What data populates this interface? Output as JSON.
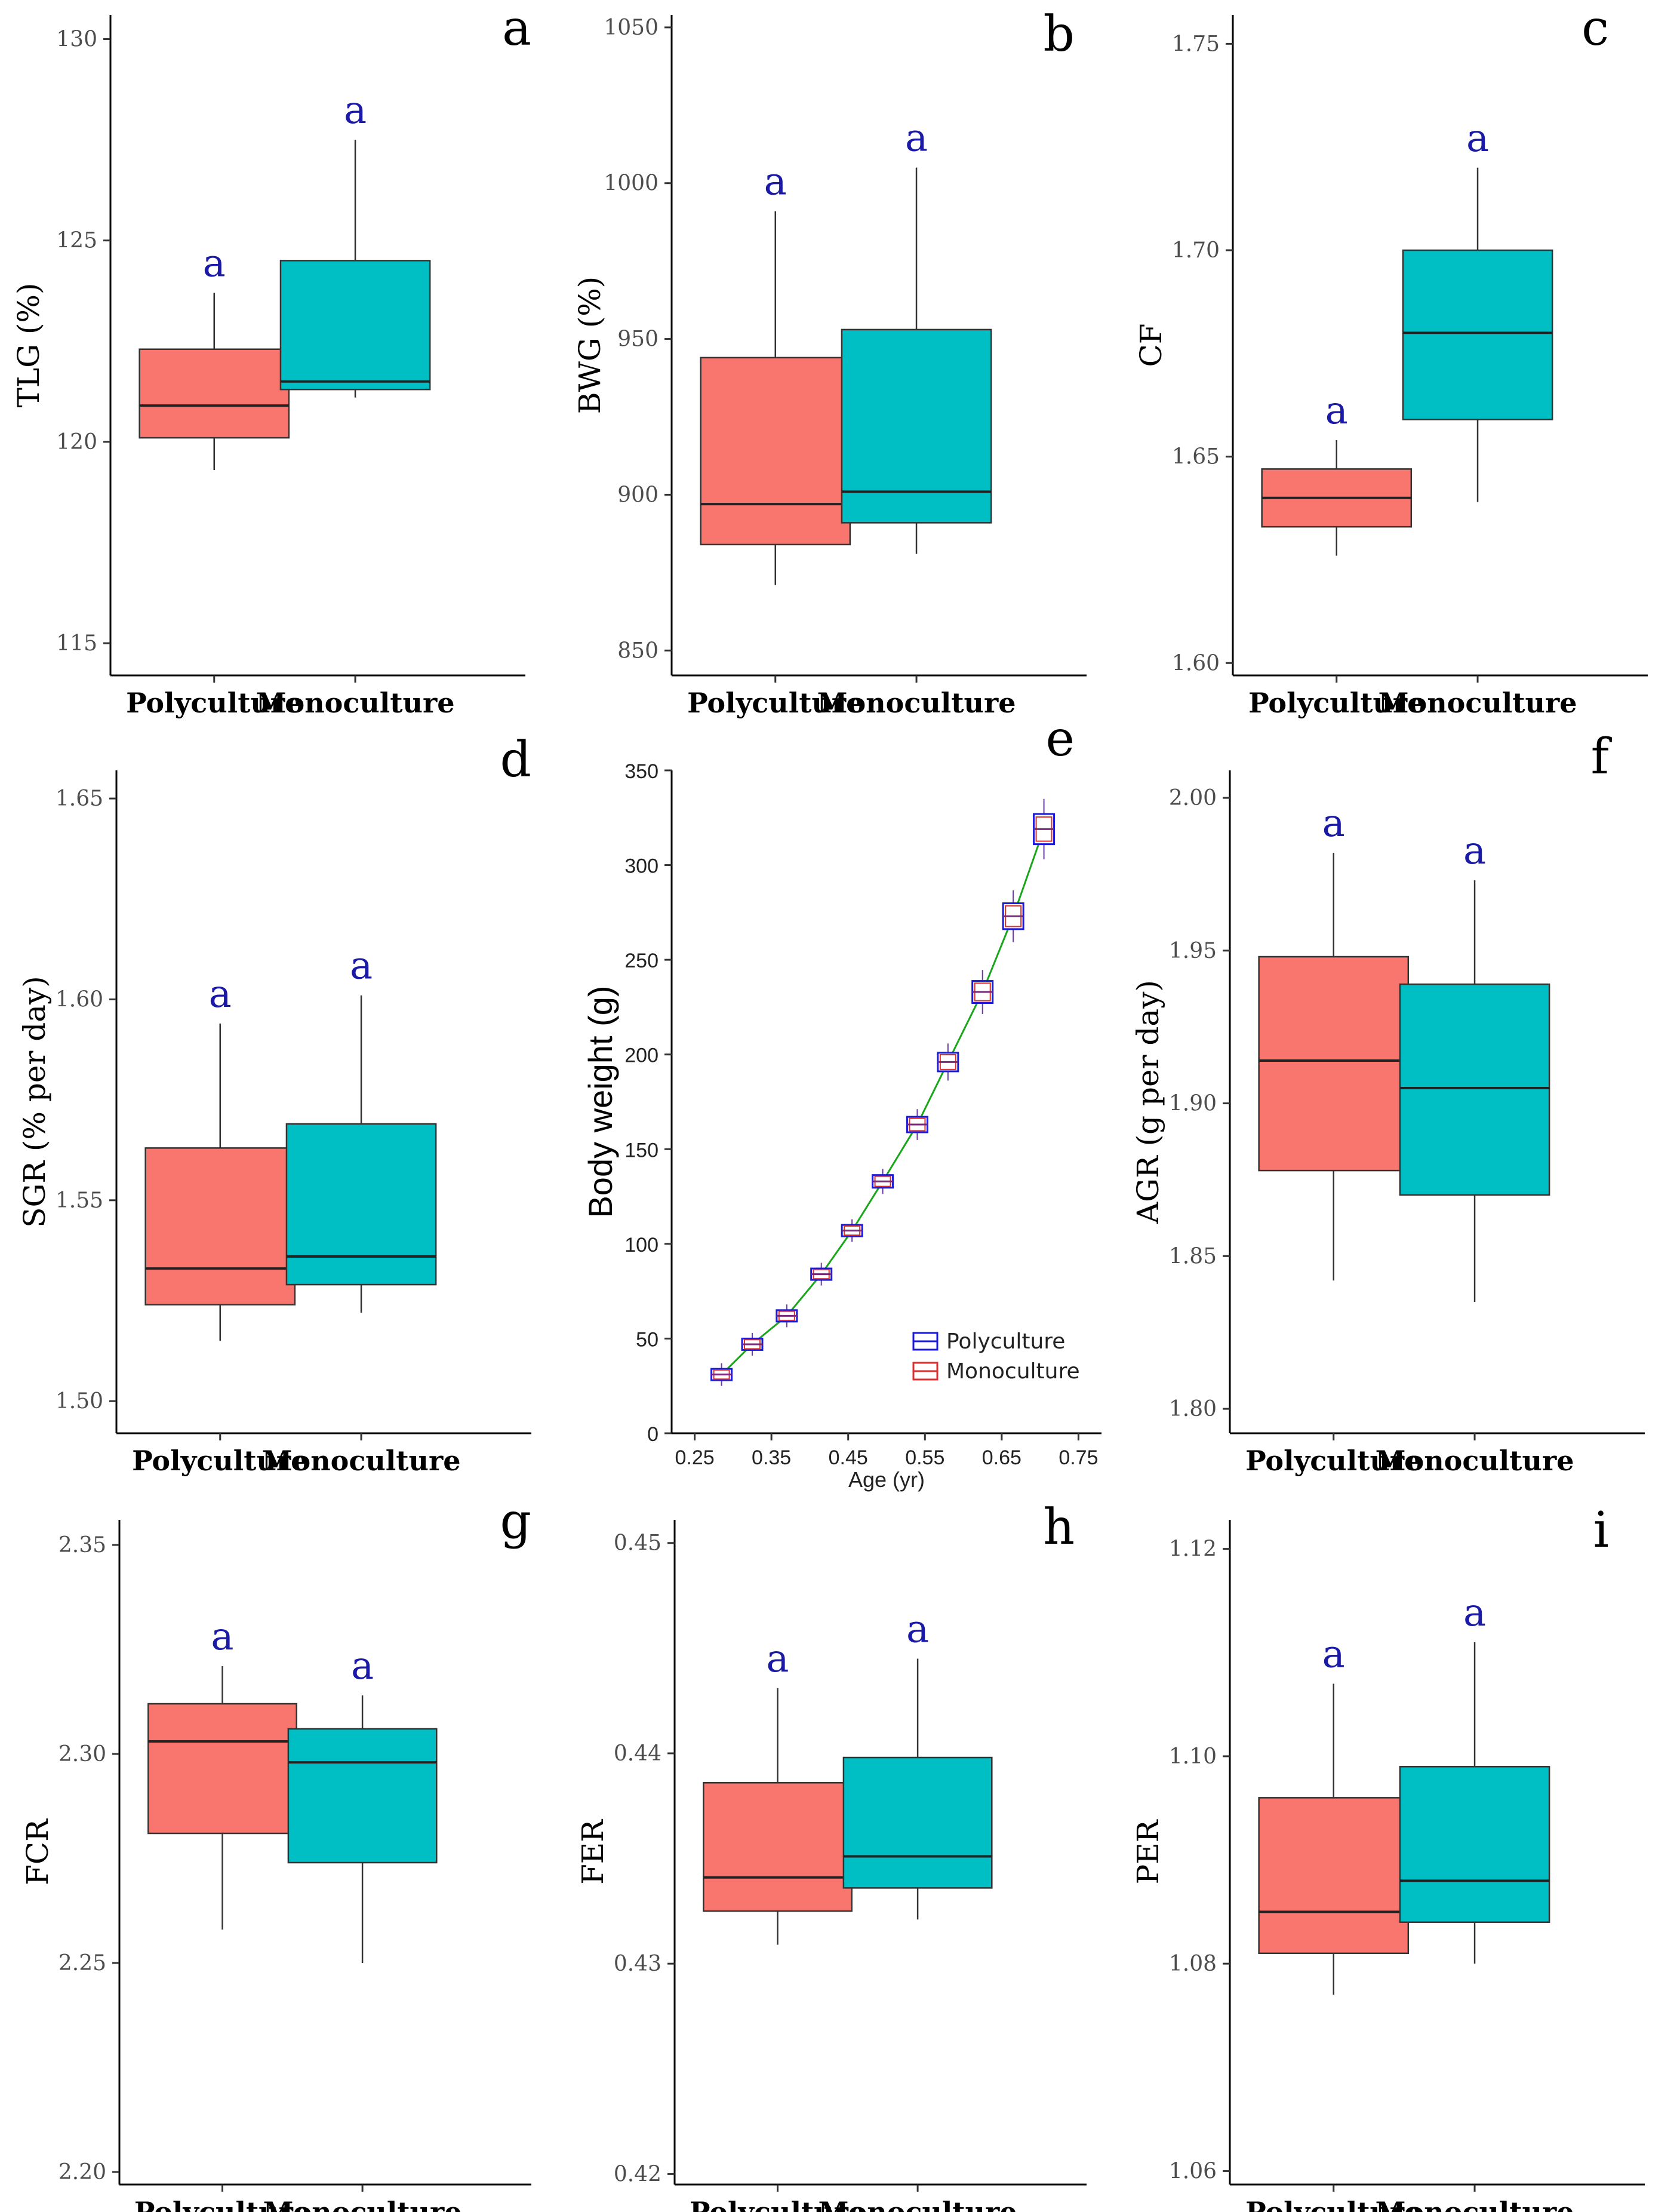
{
  "chart_data": [
    {
      "type": "box",
      "panel": "a",
      "ylabel": "TLG (%)",
      "ylim": [
        114.2,
        130.6
      ],
      "yticks": [
        115,
        120,
        125,
        130
      ],
      "decimals": 0,
      "categories": [
        "Polyculture",
        "Monoculture"
      ],
      "colors": [
        "#f8766d",
        "#00bfc4"
      ],
      "boxes": [
        {
          "min": 119.3,
          "q1": 120.1,
          "median": 120.9,
          "q3": 122.3,
          "max": 123.7,
          "label": "a"
        },
        {
          "min": 121.1,
          "q1": 121.3,
          "median": 121.5,
          "q3": 124.5,
          "max": 127.5,
          "label": "a"
        }
      ]
    },
    {
      "type": "box",
      "panel": "b",
      "ylabel": "BWG (%)",
      "ylim": [
        842,
        1054
      ],
      "yticks": [
        850,
        900,
        950,
        1000,
        1050
      ],
      "decimals": 0,
      "categories": [
        "Polyculture",
        "Monoculture"
      ],
      "colors": [
        "#f8766d",
        "#00bfc4"
      ],
      "boxes": [
        {
          "min": 871,
          "q1": 884,
          "median": 897,
          "q3": 944,
          "max": 991,
          "label": "a"
        },
        {
          "min": 881,
          "q1": 891,
          "median": 901,
          "q3": 953,
          "max": 1005,
          "label": "a"
        }
      ]
    },
    {
      "type": "box",
      "panel": "c",
      "ylabel": "CF",
      "ylim": [
        1.597,
        1.757
      ],
      "yticks": [
        1.6,
        1.65,
        1.7,
        1.75
      ],
      "decimals": 2,
      "categories": [
        "Polyculture",
        "Monoculture"
      ],
      "colors": [
        "#f8766d",
        "#00bfc4"
      ],
      "boxes": [
        {
          "min": 1.626,
          "q1": 1.633,
          "median": 1.64,
          "q3": 1.647,
          "max": 1.654,
          "label": "a"
        },
        {
          "min": 1.639,
          "q1": 1.659,
          "median": 1.68,
          "q3": 1.7,
          "max": 1.72,
          "label": "a"
        }
      ]
    },
    {
      "type": "box",
      "panel": "d",
      "ylabel": "SGR (% per day)",
      "ylim": [
        1.492,
        1.657
      ],
      "yticks": [
        1.5,
        1.55,
        1.6,
        1.65
      ],
      "decimals": 2,
      "categories": [
        "Polyculture",
        "Monoculture"
      ],
      "colors": [
        "#f8766d",
        "#00bfc4"
      ],
      "boxes": [
        {
          "min": 1.515,
          "q1": 1.524,
          "median": 1.533,
          "q3": 1.563,
          "max": 1.594,
          "label": "a"
        },
        {
          "min": 1.522,
          "q1": 1.529,
          "median": 1.536,
          "q3": 1.569,
          "max": 1.601,
          "label": "a"
        }
      ]
    },
    {
      "type": "box-line",
      "panel": "e",
      "ylabel": "Body weight (g)",
      "xlabel": "Age (yr)",
      "xlim": [
        0.22,
        0.78
      ],
      "ylim": [
        0,
        350
      ],
      "xticks": [
        0.25,
        0.35,
        0.45,
        0.55,
        0.65,
        0.75
      ],
      "yticks": [
        0,
        50,
        100,
        150,
        200,
        250,
        300,
        350
      ],
      "x": [
        0.285,
        0.325,
        0.37,
        0.415,
        0.455,
        0.495,
        0.54,
        0.58,
        0.625,
        0.665,
        0.705
      ],
      "y": [
        31,
        47,
        62,
        84,
        107,
        133,
        163,
        196,
        233,
        273,
        319
      ],
      "legend": [
        "Polyculture",
        "Monoculture"
      ],
      "legend_colors": [
        "#1a1ad9",
        "#d93030"
      ],
      "line_color": "#1aa61a"
    },
    {
      "type": "box",
      "panel": "f",
      "ylabel": "AGR (g per day)",
      "ylim": [
        1.792,
        2.009
      ],
      "yticks": [
        1.8,
        1.85,
        1.9,
        1.95,
        2.0
      ],
      "decimals": 2,
      "categories": [
        "Polyculture",
        "Monoculture"
      ],
      "colors": [
        "#f8766d",
        "#00bfc4"
      ],
      "boxes": [
        {
          "min": 1.842,
          "q1": 1.878,
          "median": 1.914,
          "q3": 1.948,
          "max": 1.982,
          "label": "a"
        },
        {
          "min": 1.835,
          "q1": 1.87,
          "median": 1.905,
          "q3": 1.939,
          "max": 1.973,
          "label": "a"
        }
      ]
    },
    {
      "type": "box",
      "panel": "g",
      "ylabel": "FCR",
      "ylim": [
        2.197,
        2.356
      ],
      "yticks": [
        2.2,
        2.25,
        2.3,
        2.35
      ],
      "decimals": 2,
      "categories": [
        "Polyculture",
        "Monoculture"
      ],
      "colors": [
        "#f8766d",
        "#00bfc4"
      ],
      "boxes": [
        {
          "min": 2.258,
          "q1": 2.281,
          "median": 2.303,
          "q3": 2.312,
          "max": 2.321,
          "label": "a"
        },
        {
          "min": 2.25,
          "q1": 2.274,
          "median": 2.298,
          "q3": 2.306,
          "max": 2.314,
          "label": "a"
        }
      ]
    },
    {
      "type": "box",
      "panel": "h",
      "ylabel": "FER",
      "ylim": [
        0.4195,
        0.4511
      ],
      "yticks": [
        0.42,
        0.43,
        0.44,
        0.45
      ],
      "decimals": 2,
      "categories": [
        "Polyculture",
        "Monoculture"
      ],
      "colors": [
        "#f8766d",
        "#00bfc4"
      ],
      "boxes": [
        {
          "min": 0.4309,
          "q1": 0.4325,
          "median": 0.4341,
          "q3": 0.4386,
          "max": 0.4431,
          "label": "a"
        },
        {
          "min": 0.4321,
          "q1": 0.4336,
          "median": 0.4351,
          "q3": 0.4398,
          "max": 0.4445,
          "label": "a"
        }
      ]
    },
    {
      "type": "box",
      "panel": "i",
      "ylabel": "PER",
      "ylim": [
        1.0587,
        1.1228
      ],
      "yticks": [
        1.06,
        1.08,
        1.1,
        1.12
      ],
      "decimals": 2,
      "categories": [
        "Polyculture",
        "Monoculture"
      ],
      "colors": [
        "#f8766d",
        "#00bfc4"
      ],
      "boxes": [
        {
          "min": 1.077,
          "q1": 1.081,
          "median": 1.085,
          "q3": 1.096,
          "max": 1.107,
          "label": "a"
        },
        {
          "min": 1.08,
          "q1": 1.084,
          "median": 1.088,
          "q3": 1.099,
          "max": 1.111,
          "label": "a"
        }
      ]
    }
  ]
}
